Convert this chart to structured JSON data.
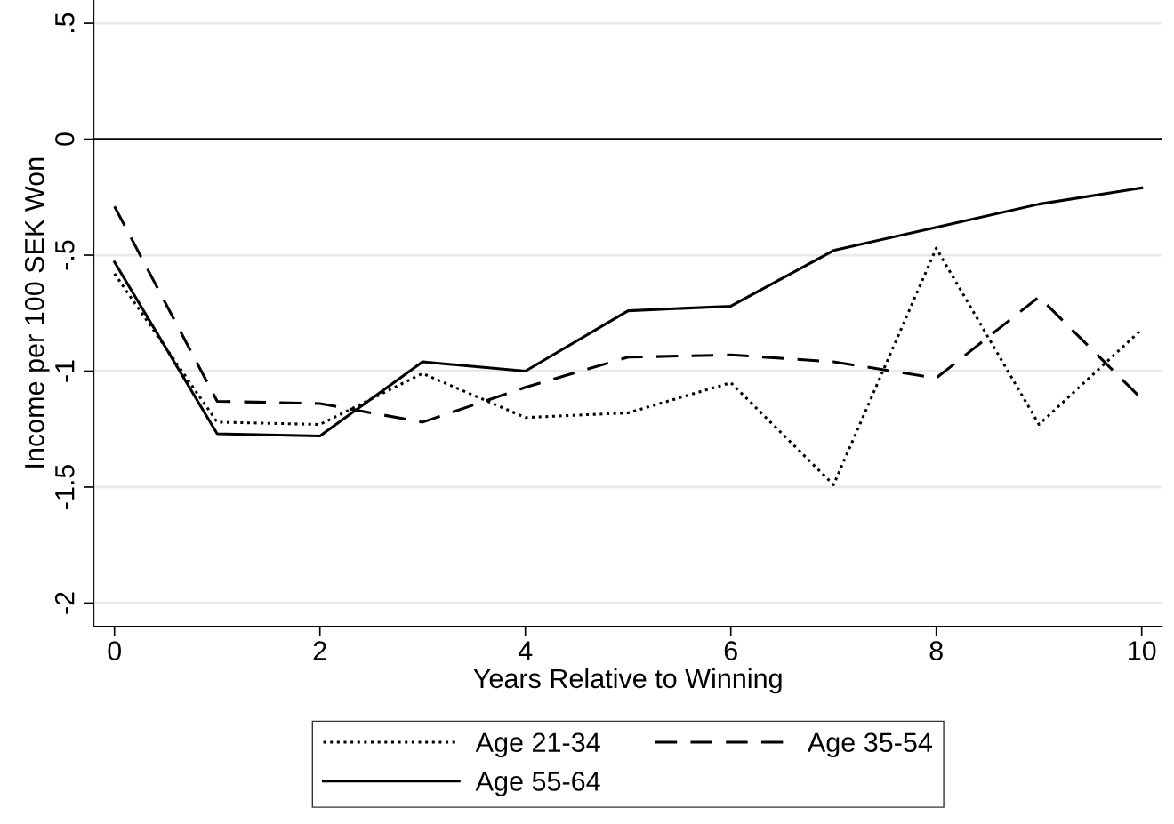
{
  "chart_data": {
    "type": "line",
    "xlabel": "Years Relative to Winning",
    "ylabel": "Income per 100 SEK Won",
    "x": [
      0,
      1,
      2,
      3,
      4,
      5,
      6,
      7,
      8,
      9,
      10
    ],
    "series": [
      {
        "name": "Age 21-34",
        "color": "#000000",
        "line_style": "dotted",
        "values": [
          -0.58,
          -1.22,
          -1.23,
          -1.01,
          -1.2,
          -1.18,
          -1.05,
          -1.49,
          -0.47,
          -1.23,
          -0.82
        ]
      },
      {
        "name": "Age 35-54",
        "color": "#000000",
        "line_style": "dashed",
        "values": [
          -0.29,
          -1.13,
          -1.14,
          -1.22,
          -1.07,
          -0.94,
          -0.93,
          -0.96,
          -1.03,
          -0.68,
          -1.12
        ]
      },
      {
        "name": "Age 55-64",
        "color": "#000000",
        "line_style": "solid",
        "values": [
          -0.53,
          -1.27,
          -1.28,
          -0.96,
          -1.0,
          -0.74,
          -0.72,
          -0.48,
          -0.38,
          -0.28,
          -0.21
        ]
      }
    ],
    "xlim": [
      -0.2,
      10.2
    ],
    "xticks": [
      0,
      2,
      4,
      6,
      8,
      10
    ],
    "ylim": [
      -2.1,
      0.6
    ],
    "yticks": [
      {
        "value": 0.5,
        "label": ".5"
      },
      {
        "value": 0,
        "label": "0"
      },
      {
        "value": -0.5,
        "label": "-.5"
      },
      {
        "value": -1,
        "label": "-1"
      },
      {
        "value": -1.5,
        "label": "-1.5"
      },
      {
        "value": -2,
        "label": "-2"
      }
    ],
    "ref_lines": [
      {
        "axis": "y",
        "value": 0,
        "color": "#000000"
      }
    ],
    "grid": "y",
    "legend": "bottom",
    "marker": "none"
  }
}
